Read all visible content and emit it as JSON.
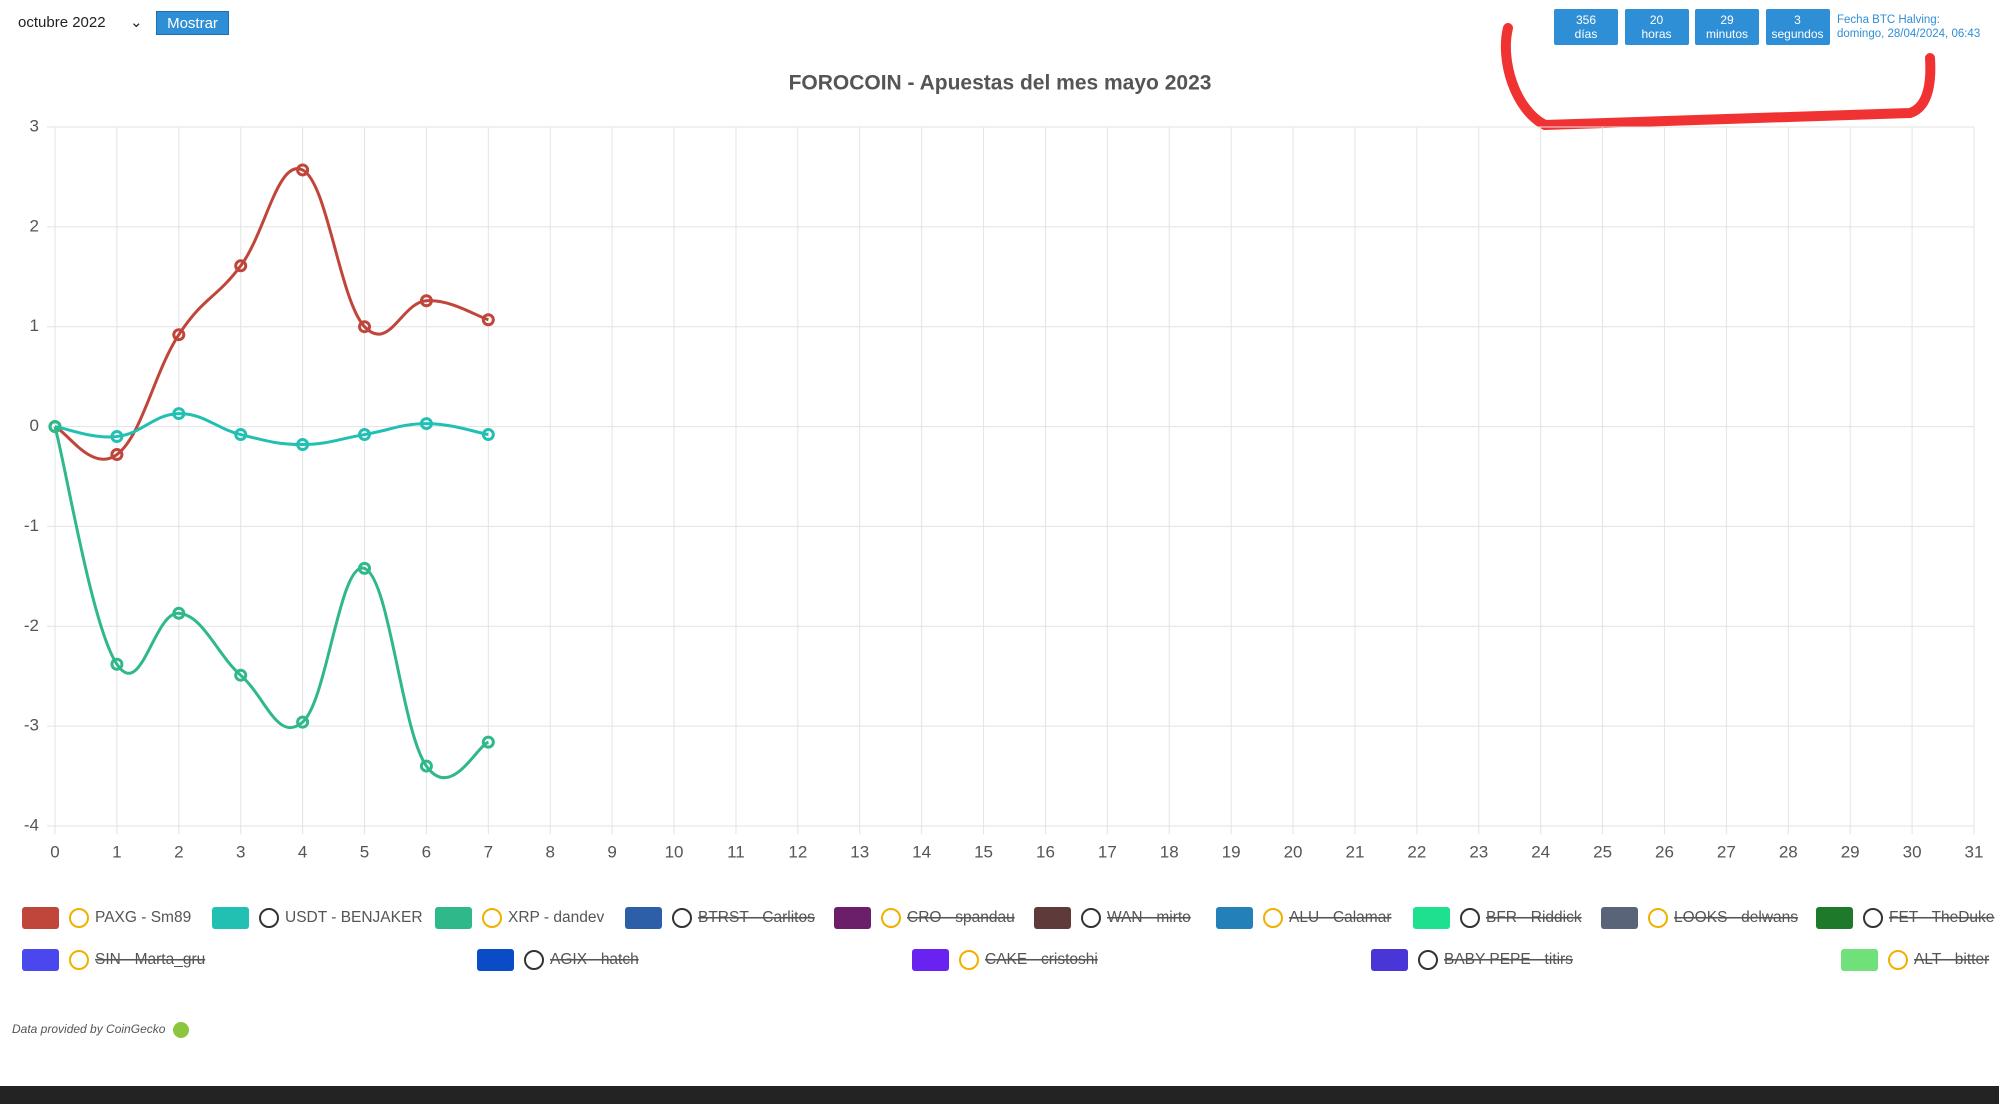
{
  "controls": {
    "month_select": "octubre 2022",
    "button": "Mostrar"
  },
  "countdown": [
    {
      "value": 356,
      "unit": "días"
    },
    {
      "value": 20,
      "unit": "horas"
    },
    {
      "value": 29,
      "unit": "minutos"
    },
    {
      "value": 3,
      "unit": "segundos"
    }
  ],
  "halving": {
    "label": "Fecha BTC Halving:",
    "date": "domingo, 28/04/2024, 06:43"
  },
  "chart_data": {
    "type": "line",
    "title": "FOROCOIN - Apuestas del mes mayo 2023",
    "x": [
      0,
      1,
      2,
      3,
      4,
      5,
      6,
      7
    ],
    "xlim": [
      0,
      31
    ],
    "xticks": [
      0,
      1,
      2,
      3,
      4,
      5,
      6,
      7,
      8,
      9,
      10,
      11,
      12,
      13,
      14,
      15,
      16,
      17,
      18,
      19,
      20,
      21,
      22,
      23,
      24,
      25,
      26,
      27,
      28,
      29,
      30,
      31
    ],
    "ylim": [
      -4,
      3
    ],
    "yticks": [
      -4,
      -3,
      -2,
      -1,
      0,
      1,
      2,
      3
    ],
    "grid": true,
    "series": [
      {
        "name": "PAXG - Sm89",
        "color": "#c0453a",
        "values": [
          0,
          -0.28,
          0.92,
          1.61,
          2.57,
          1.0,
          1.26,
          1.07
        ]
      },
      {
        "name": "USDT - BENJAKER",
        "color": "#22bfb3",
        "values": [
          0,
          -0.1,
          0.13,
          -0.08,
          -0.18,
          -0.08,
          0.03,
          -0.08
        ]
      },
      {
        "name": "XRP - dandev",
        "color": "#2fb88a",
        "values": [
          0,
          -2.38,
          -1.87,
          -2.49,
          -2.96,
          -1.42,
          -3.4,
          -3.16
        ]
      },
      {
        "name": "BTRST - Carlitos",
        "color": "#2c5fa8",
        "hidden": true
      },
      {
        "name": "CRO - spandau",
        "color": "#6b1f6b",
        "hidden": true
      },
      {
        "name": "WAN - mirto",
        "color": "#5e3a3a",
        "hidden": true
      },
      {
        "name": "ALU - Calamar",
        "color": "#2380b8",
        "hidden": true
      },
      {
        "name": "BFR - Riddick",
        "color": "#1fe08f",
        "hidden": true
      },
      {
        "name": "LOOKS - delwans",
        "color": "#5a6478",
        "hidden": true
      },
      {
        "name": "FET - TheDuke",
        "color": "#1e7a2a",
        "hidden": true
      },
      {
        "name": "SIN - Marta_gru",
        "color": "#4a47ef",
        "hidden": true
      },
      {
        "name": "AGIX - hatch",
        "color": "#0b4cc6",
        "hidden": true
      },
      {
        "name": "CAKE - cristoshi",
        "color": "#6a22f0",
        "hidden": true
      },
      {
        "name": "BABY PEPE - titirs",
        "color": "#4a35d6",
        "hidden": true
      },
      {
        "name": "ALT - bitter",
        "color": "#6fe07a",
        "hidden": true
      }
    ]
  },
  "footer": "Data provided by CoinGecko"
}
